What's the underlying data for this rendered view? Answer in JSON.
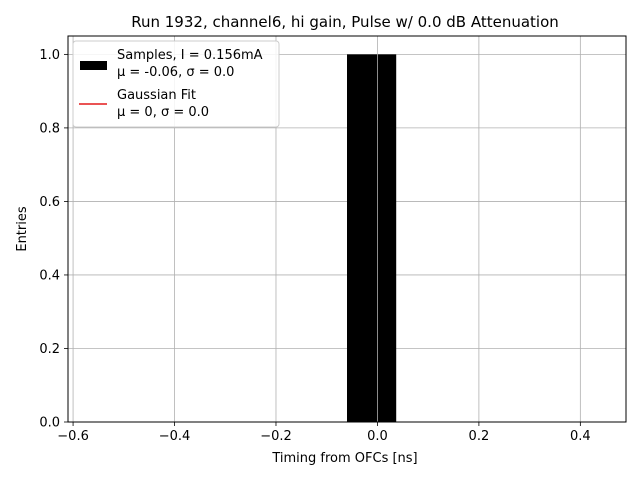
{
  "chart_data": {
    "type": "bar",
    "title": "Run 1932, channel6, hi gain, Pulse w/ 0.0 dB Attenuation",
    "xlabel": "Timing from OFCs [ns]",
    "ylabel": "Entries",
    "xlim": [
      -0.61,
      0.49
    ],
    "ylim": [
      0,
      1.05
    ],
    "grid": true,
    "x_ticks": [
      -0.6,
      -0.4,
      -0.2,
      0.0,
      0.2,
      0.4
    ],
    "x_tick_labels": [
      "−0.6",
      "−0.4",
      "−0.2",
      "0.0",
      "0.2",
      "0.4"
    ],
    "y_ticks": [
      0.0,
      0.2,
      0.4,
      0.6,
      0.8,
      1.0
    ],
    "y_tick_labels": [
      "0.0",
      "0.2",
      "0.4",
      "0.6",
      "0.8",
      "1.0"
    ],
    "bars": [
      {
        "x_start": -0.06,
        "x_end": 0.037,
        "value": 1.0
      }
    ],
    "series": [
      {
        "name": "Samples",
        "color": "#000000"
      },
      {
        "name": "Gaussian Fit",
        "color": "#e41a1c"
      }
    ],
    "legend": {
      "location": "top-left",
      "entries": [
        {
          "line1": "Samples, I = 0.156mA",
          "line2": "μ = -0.06, σ = 0.0",
          "kind": "patch",
          "color": "#000000"
        },
        {
          "line1": "Gaussian Fit",
          "line2": "μ = 0, σ = 0.0",
          "kind": "line",
          "color": "#e41a1c"
        }
      ]
    }
  }
}
